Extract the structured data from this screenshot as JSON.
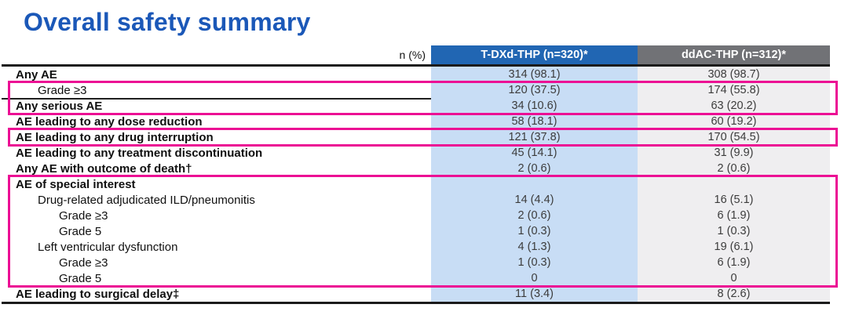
{
  "title": "Overall safety summary",
  "colors": {
    "title_blue": "#1b58b8",
    "header_col1_blue": "#2166b3",
    "header_col2_gray": "#717276",
    "col1_body_blue": "#c8ddf5",
    "col2_body_gray": "#efeef0",
    "highlight_magenta": "#ec0f94",
    "rule_black": "#1b1b1b"
  },
  "table": {
    "corner_label": "n (%)",
    "columns": [
      {
        "label": "T-DXd-THP (n=320)*"
      },
      {
        "label": "ddAC-THP (n=312)*"
      }
    ],
    "groups": [
      {
        "boxed": false,
        "rows": [
          {
            "label": "Any AE",
            "bold": true,
            "indent": 0,
            "values": [
              "314 (98.1)",
              "308 (98.7)"
            ]
          }
        ]
      },
      {
        "boxed": true,
        "rows": [
          {
            "label": "Grade ≥3",
            "bold": false,
            "indent": 1,
            "values": [
              "120 (37.5)",
              "174 (55.8)"
            ]
          },
          {
            "label": "Any serious AE",
            "bold": true,
            "indent": 0,
            "sep_top": true,
            "values": [
              "34 (10.6)",
              "63 (20.2)"
            ]
          }
        ]
      },
      {
        "boxed": false,
        "rows": [
          {
            "label": "AE leading to any dose reduction",
            "bold": true,
            "indent": 0,
            "values": [
              "58 (18.1)",
              "60 (19.2)"
            ]
          }
        ]
      },
      {
        "boxed": true,
        "rows": [
          {
            "label": "AE leading to any drug interruption",
            "bold": true,
            "indent": 0,
            "values": [
              "121 (37.8)",
              "170 (54.5)"
            ]
          }
        ]
      },
      {
        "boxed": false,
        "rows": [
          {
            "label": "AE leading to any treatment discontinuation",
            "bold": true,
            "indent": 0,
            "values": [
              "45 (14.1)",
              "31 (9.9)"
            ]
          },
          {
            "label": "Any AE with outcome of death†",
            "bold": true,
            "indent": 0,
            "values": [
              "2 (0.6)",
              "2 (0.6)"
            ]
          }
        ]
      },
      {
        "boxed": true,
        "rows": [
          {
            "label": "AE of special interest",
            "bold": true,
            "indent": 0,
            "values": [
              "",
              ""
            ]
          },
          {
            "label": "Drug-related adjudicated ILD/pneumonitis",
            "bold": false,
            "indent": 1,
            "values": [
              "14 (4.4)",
              "16 (5.1)"
            ]
          },
          {
            "label": "Grade ≥3",
            "bold": false,
            "indent": 2,
            "values": [
              "2 (0.6)",
              "6 (1.9)"
            ]
          },
          {
            "label": "Grade 5",
            "bold": false,
            "indent": 2,
            "values": [
              "1 (0.3)",
              "1 (0.3)"
            ]
          },
          {
            "label": "Left ventricular dysfunction",
            "bold": false,
            "indent": 1,
            "values": [
              "4 (1.3)",
              "19 (6.1)"
            ]
          },
          {
            "label": "Grade ≥3",
            "bold": false,
            "indent": 2,
            "values": [
              "1 (0.3)",
              "6 (1.9)"
            ]
          },
          {
            "label": "Grade 5",
            "bold": false,
            "indent": 2,
            "values": [
              "0",
              "0"
            ]
          }
        ]
      },
      {
        "boxed": false,
        "rows": [
          {
            "label": "AE leading to surgical delay‡",
            "bold": true,
            "indent": 0,
            "values": [
              "11 (3.4)",
              "8 (2.6)"
            ]
          }
        ]
      }
    ]
  }
}
